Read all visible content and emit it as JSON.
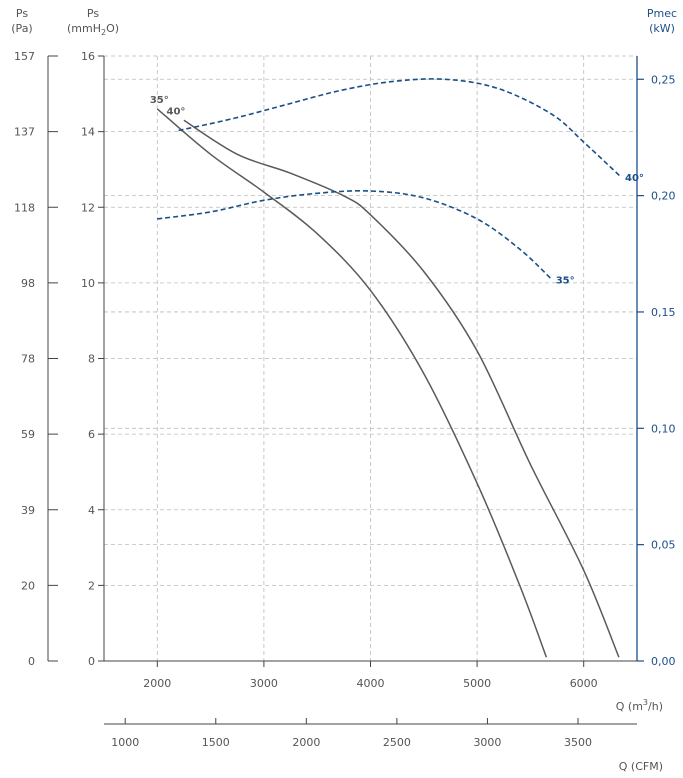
{
  "chart_data": {
    "type": "line",
    "title": "",
    "colors": {
      "pressure": "#5a5a5a",
      "power": "#1b4f8a",
      "grid": "#bbbbbb",
      "axis": "#444444"
    },
    "axes": {
      "pa": {
        "title_line1": "Ps",
        "title_line2": "(Pa)",
        "ticks": [
          "0",
          "20",
          "39",
          "59",
          "78",
          "98",
          "118",
          "137",
          "157"
        ]
      },
      "mmh2o": {
        "title_line1": "Ps",
        "title_line2": "(mmH",
        "title_sub": "2",
        "title_end": "O)",
        "range": [
          0,
          16
        ],
        "ticks": [
          0,
          2,
          4,
          6,
          8,
          10,
          12,
          14,
          16
        ]
      },
      "pmec": {
        "title_line1": "Pmec",
        "title_line2": "(kW)",
        "range": [
          0,
          0.26
        ],
        "ticks": [
          0,
          0.05,
          0.1,
          0.15,
          0.2,
          0.25
        ],
        "tick_labels": [
          "0,00",
          "0,05",
          "0,10",
          "0,15",
          "0,20",
          "0,25"
        ]
      },
      "flow_m3h": {
        "label_pre": "Q (m",
        "label_sup": "3",
        "label_post": "/h)",
        "range": [
          1500,
          6500
        ],
        "ticks": [
          2000,
          3000,
          4000,
          5000,
          6000
        ]
      },
      "flow_cfm": {
        "label": "Q (CFM)",
        "ticks": [
          1000,
          1500,
          2000,
          2500,
          3000,
          3500
        ]
      }
    },
    "series": [
      {
        "name": "35°",
        "kind": "pressure",
        "x": [
          2000,
          2500,
          3000,
          3500,
          4000,
          4500,
          5000,
          5400,
          5650
        ],
        "y": [
          14.6,
          13.4,
          12.4,
          11.3,
          9.8,
          7.6,
          4.7,
          2.0,
          0.1
        ]
      },
      {
        "name": "40°",
        "kind": "pressure",
        "x": [
          2250,
          2750,
          3250,
          3750,
          4000,
          4500,
          5000,
          5500,
          6000,
          6330
        ],
        "y": [
          14.3,
          13.4,
          12.9,
          12.3,
          11.8,
          10.3,
          8.2,
          5.2,
          2.4,
          0.1
        ]
      },
      {
        "name": "35°",
        "kind": "power",
        "x": [
          2000,
          2500,
          3000,
          3500,
          4000,
          4500,
          5000,
          5400,
          5700
        ],
        "y": [
          0.19,
          0.193,
          0.198,
          0.201,
          0.202,
          0.199,
          0.19,
          0.177,
          0.164
        ]
      },
      {
        "name": "40°",
        "kind": "power",
        "x": [
          2200,
          2700,
          3200,
          3700,
          4200,
          4700,
          5200,
          5700,
          6000,
          6350
        ],
        "y": [
          0.228,
          0.233,
          0.239,
          0.245,
          0.249,
          0.25,
          0.246,
          0.235,
          0.223,
          0.208
        ]
      }
    ],
    "series_labels": [
      {
        "text": "35°",
        "kind": "pressure"
      },
      {
        "text": "40°",
        "kind": "pressure"
      },
      {
        "text": "35°",
        "kind": "power"
      },
      {
        "text": "40°",
        "kind": "power"
      }
    ]
  }
}
